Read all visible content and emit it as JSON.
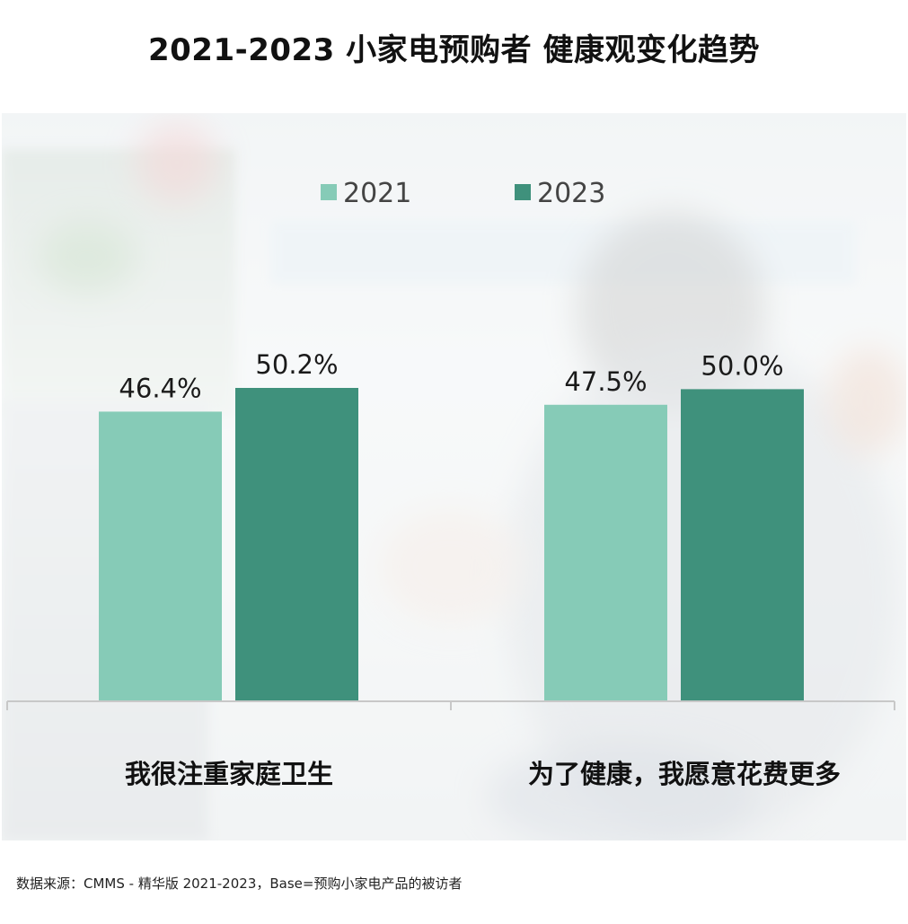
{
  "header": {
    "title": "2021-2023  小家电预购者  健康观变化趋势"
  },
  "chart_data": {
    "type": "bar",
    "categories": [
      "我很注重家庭卫生",
      "为了健康，我愿意花费更多"
    ],
    "series": [
      {
        "name": "2021",
        "values": [
          46.4,
          47.5
        ],
        "labels": [
          "46.4%",
          "47.5%"
        ],
        "color": "#86cbb7"
      },
      {
        "name": "2023",
        "values": [
          50.2,
          50.0
        ],
        "labels": [
          "50.2%",
          "50.0%"
        ],
        "color": "#3f917c"
      }
    ],
    "ylim": [
      0,
      50.2
    ],
    "grid": false,
    "legend_position": "top-center"
  },
  "footer": {
    "source": "数据来源：CMMS - 精华版 2021-2023，Base=预购小家电产品的被访者"
  }
}
